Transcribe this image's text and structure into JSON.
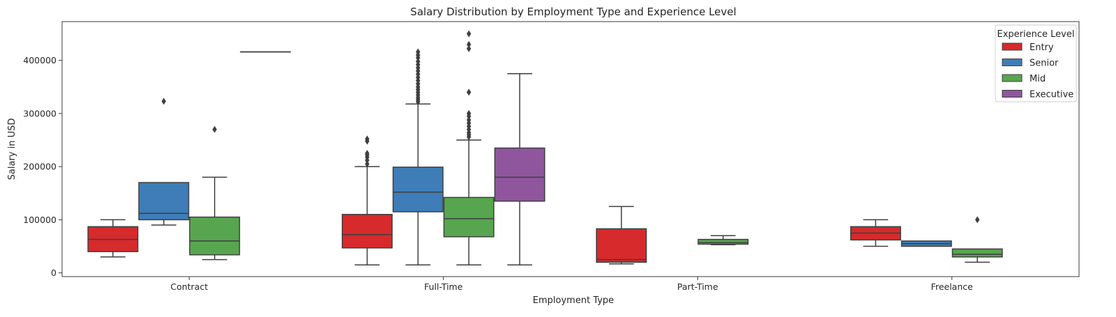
{
  "chart_data": {
    "type": "box",
    "title": "Salary Distribution by Employment Type and Experience Level",
    "xlabel": "Employment Type",
    "ylabel": "Salary in USD",
    "ylim": [
      -7000,
      473000
    ],
    "yticks": [
      0,
      100000,
      200000,
      300000,
      400000
    ],
    "yticklabels": [
      "0",
      "100000",
      "200000",
      "300000",
      "400000"
    ],
    "categories": [
      "Contract",
      "Full-Time",
      "Part-Time",
      "Freelance"
    ],
    "legend": {
      "title": "Experience Level",
      "placement": "top-right",
      "entries": [
        "Entry",
        "Senior",
        "Mid",
        "Executive"
      ]
    },
    "series": [
      {
        "name": "Entry",
        "color": "#d62a2c",
        "boxes": [
          {
            "category": "Contract",
            "min": 30000,
            "q1": 40000,
            "median": 63000,
            "q3": 87000,
            "max": 100000,
            "outliers": []
          },
          {
            "category": "Full-Time",
            "min": 15000,
            "q1": 47000,
            "median": 72000,
            "q3": 110000,
            "max": 200000,
            "outliers": [
              205000,
              212000,
              218000,
              222000,
              225000,
              248000,
              252000
            ]
          },
          {
            "category": "Part-Time",
            "min": 17000,
            "q1": 20000,
            "median": 25000,
            "q3": 83000,
            "max": 125000,
            "outliers": []
          },
          {
            "category": "Freelance",
            "min": 50000,
            "q1": 62000,
            "median": 75000,
            "q3": 87000,
            "max": 100000,
            "outliers": []
          }
        ]
      },
      {
        "name": "Senior",
        "color": "#3e7db7",
        "boxes": [
          {
            "category": "Contract",
            "min": 90000,
            "q1": 100000,
            "median": 112000,
            "q3": 170000,
            "max": 170000,
            "outliers": [
              323000
            ]
          },
          {
            "category": "Full-Time",
            "min": 15000,
            "q1": 115000,
            "median": 152000,
            "q3": 199000,
            "max": 318000,
            "outliers": [
              322000,
              326000,
              330000,
              335000,
              340000,
              345000,
              350000,
              356000,
              362000,
              368000,
              374000,
              380000,
              386000,
              392000,
              398000,
              405000,
              410000,
              416000
            ]
          },
          {
            "category": "Freelance",
            "min": 50000,
            "q1": 50000,
            "median": 55000,
            "q3": 60000,
            "max": 60000,
            "outliers": []
          }
        ]
      },
      {
        "name": "Mid",
        "color": "#58a550",
        "boxes": [
          {
            "category": "Contract",
            "min": 25000,
            "q1": 34000,
            "median": 60000,
            "q3": 105000,
            "max": 180000,
            "outliers": [
              270000
            ]
          },
          {
            "category": "Full-Time",
            "min": 15000,
            "q1": 68000,
            "median": 102000,
            "q3": 142000,
            "max": 250000,
            "outliers": [
              256000,
              260000,
              264000,
              270000,
              276000,
              282000,
              288000,
              295000,
              300000,
              340000,
              422000,
              430000,
              450000
            ]
          },
          {
            "category": "Part-Time",
            "min": 53000,
            "q1": 54000,
            "median": 57000,
            "q3": 63000,
            "max": 70000,
            "outliers": []
          },
          {
            "category": "Freelance",
            "min": 20000,
            "q1": 30000,
            "median": 35000,
            "q3": 45000,
            "max": 45000,
            "outliers": [
              100000
            ]
          }
        ]
      },
      {
        "name": "Executive",
        "color": "#8f569e",
        "boxes": [
          {
            "category": "Contract",
            "min": 416000,
            "q1": 416000,
            "median": 416000,
            "q3": 416000,
            "max": 416000,
            "outliers": []
          },
          {
            "category": "Full-Time",
            "min": 15000,
            "q1": 135000,
            "median": 180000,
            "q3": 235000,
            "max": 375000,
            "outliers": []
          }
        ]
      }
    ]
  }
}
